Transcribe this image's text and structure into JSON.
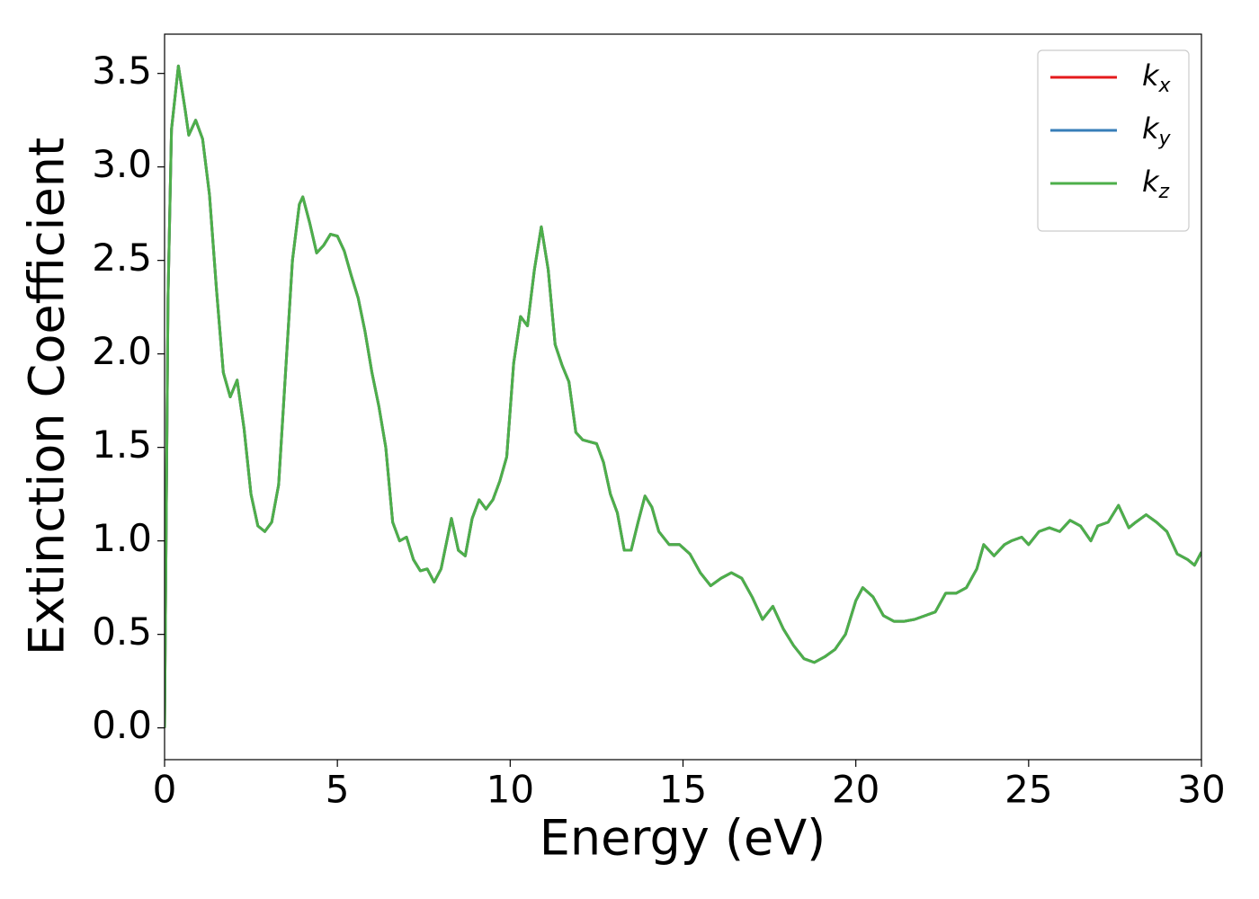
{
  "chart_data": {
    "type": "line",
    "xlabel": "Energy (eV)",
    "ylabel": "Extinction Coefficient",
    "x": [
      0,
      0.1,
      0.2,
      0.4,
      0.6,
      0.7,
      0.9,
      1.1,
      1.3,
      1.5,
      1.7,
      1.9,
      2.1,
      2.3,
      2.5,
      2.7,
      2.9,
      3.1,
      3.3,
      3.5,
      3.7,
      3.9,
      4.0,
      4.2,
      4.4,
      4.6,
      4.8,
      5.0,
      5.2,
      5.4,
      5.6,
      5.8,
      6.0,
      6.2,
      6.4,
      6.6,
      6.8,
      7.0,
      7.2,
      7.4,
      7.6,
      7.8,
      8.0,
      8.3,
      8.5,
      8.7,
      8.9,
      9.1,
      9.3,
      9.5,
      9.7,
      9.9,
      10.1,
      10.3,
      10.5,
      10.7,
      10.9,
      11.1,
      11.3,
      11.5,
      11.7,
      11.9,
      12.1,
      12.3,
      12.5,
      12.7,
      12.9,
      13.1,
      13.3,
      13.5,
      13.7,
      13.9,
      14.1,
      14.3,
      14.6,
      14.9,
      15.2,
      15.5,
      15.8,
      16.1,
      16.4,
      16.7,
      17.0,
      17.3,
      17.6,
      17.9,
      18.2,
      18.5,
      18.8,
      19.1,
      19.4,
      19.7,
      20.0,
      20.2,
      20.5,
      20.8,
      21.1,
      21.4,
      21.7,
      22.0,
      22.3,
      22.6,
      22.9,
      23.2,
      23.5,
      23.7,
      24.0,
      24.3,
      24.5,
      24.8,
      25.0,
      25.3,
      25.6,
      25.9,
      26.2,
      26.5,
      26.8,
      27.0,
      27.3,
      27.6,
      27.9,
      28.1,
      28.4,
      28.7,
      29.0,
      29.3,
      29.6,
      29.8,
      30.0
    ],
    "series": [
      {
        "name": "kx",
        "color": "#e41a1c",
        "values": [
          0.0,
          2.3,
          3.2,
          3.54,
          3.3,
          3.17,
          3.25,
          3.15,
          2.85,
          2.35,
          1.9,
          1.77,
          1.86,
          1.6,
          1.25,
          1.08,
          1.05,
          1.1,
          1.3,
          1.9,
          2.5,
          2.8,
          2.84,
          2.7,
          2.54,
          2.58,
          2.64,
          2.63,
          2.55,
          2.42,
          2.3,
          2.12,
          1.9,
          1.72,
          1.5,
          1.1,
          1.0,
          1.02,
          0.9,
          0.84,
          0.85,
          0.78,
          0.85,
          1.12,
          0.95,
          0.92,
          1.12,
          1.22,
          1.17,
          1.22,
          1.32,
          1.45,
          1.95,
          2.2,
          2.15,
          2.45,
          2.68,
          2.45,
          2.05,
          1.94,
          1.85,
          1.58,
          1.54,
          1.53,
          1.52,
          1.42,
          1.25,
          1.15,
          0.95,
          0.95,
          1.1,
          1.24,
          1.18,
          1.05,
          0.98,
          0.98,
          0.93,
          0.83,
          0.76,
          0.8,
          0.83,
          0.8,
          0.7,
          0.58,
          0.65,
          0.53,
          0.44,
          0.37,
          0.35,
          0.38,
          0.42,
          0.5,
          0.68,
          0.75,
          0.7,
          0.6,
          0.57,
          0.57,
          0.58,
          0.6,
          0.62,
          0.72,
          0.72,
          0.75,
          0.85,
          0.98,
          0.92,
          0.98,
          1.0,
          1.02,
          0.98,
          1.05,
          1.07,
          1.05,
          1.11,
          1.08,
          1.0,
          1.08,
          1.1,
          1.19,
          1.07,
          1.1,
          1.14,
          1.1,
          1.05,
          0.93,
          0.9,
          0.87,
          0.94
        ]
      },
      {
        "name": "ky",
        "color": "#377eb8",
        "values": [
          0.0,
          2.3,
          3.2,
          3.54,
          3.3,
          3.17,
          3.25,
          3.15,
          2.85,
          2.35,
          1.9,
          1.77,
          1.86,
          1.6,
          1.25,
          1.08,
          1.05,
          1.1,
          1.3,
          1.9,
          2.5,
          2.8,
          2.84,
          2.7,
          2.54,
          2.58,
          2.64,
          2.63,
          2.55,
          2.42,
          2.3,
          2.12,
          1.9,
          1.72,
          1.5,
          1.1,
          1.0,
          1.02,
          0.9,
          0.84,
          0.85,
          0.78,
          0.85,
          1.12,
          0.95,
          0.92,
          1.12,
          1.22,
          1.17,
          1.22,
          1.32,
          1.45,
          1.95,
          2.2,
          2.15,
          2.45,
          2.68,
          2.45,
          2.05,
          1.94,
          1.85,
          1.58,
          1.54,
          1.53,
          1.52,
          1.42,
          1.25,
          1.15,
          0.95,
          0.95,
          1.1,
          1.24,
          1.18,
          1.05,
          0.98,
          0.98,
          0.93,
          0.83,
          0.76,
          0.8,
          0.83,
          0.8,
          0.7,
          0.58,
          0.65,
          0.53,
          0.44,
          0.37,
          0.35,
          0.38,
          0.42,
          0.5,
          0.68,
          0.75,
          0.7,
          0.6,
          0.57,
          0.57,
          0.58,
          0.6,
          0.62,
          0.72,
          0.72,
          0.75,
          0.85,
          0.98,
          0.92,
          0.98,
          1.0,
          1.02,
          0.98,
          1.05,
          1.07,
          1.05,
          1.11,
          1.08,
          1.0,
          1.08,
          1.1,
          1.19,
          1.07,
          1.1,
          1.14,
          1.1,
          1.05,
          0.93,
          0.9,
          0.87,
          0.94
        ]
      },
      {
        "name": "kz",
        "color": "#4daf4a",
        "values": [
          0.0,
          2.3,
          3.2,
          3.54,
          3.3,
          3.17,
          3.25,
          3.15,
          2.85,
          2.35,
          1.9,
          1.77,
          1.86,
          1.6,
          1.25,
          1.08,
          1.05,
          1.1,
          1.3,
          1.9,
          2.5,
          2.8,
          2.84,
          2.7,
          2.54,
          2.58,
          2.64,
          2.63,
          2.55,
          2.42,
          2.3,
          2.12,
          1.9,
          1.72,
          1.5,
          1.1,
          1.0,
          1.02,
          0.9,
          0.84,
          0.85,
          0.78,
          0.85,
          1.12,
          0.95,
          0.92,
          1.12,
          1.22,
          1.17,
          1.22,
          1.32,
          1.45,
          1.95,
          2.2,
          2.15,
          2.45,
          2.68,
          2.45,
          2.05,
          1.94,
          1.85,
          1.58,
          1.54,
          1.53,
          1.52,
          1.42,
          1.25,
          1.15,
          0.95,
          0.95,
          1.1,
          1.24,
          1.18,
          1.05,
          0.98,
          0.98,
          0.93,
          0.83,
          0.76,
          0.8,
          0.83,
          0.8,
          0.7,
          0.58,
          0.65,
          0.53,
          0.44,
          0.37,
          0.35,
          0.38,
          0.42,
          0.5,
          0.68,
          0.75,
          0.7,
          0.6,
          0.57,
          0.57,
          0.58,
          0.6,
          0.62,
          0.72,
          0.72,
          0.75,
          0.85,
          0.98,
          0.92,
          0.98,
          1.0,
          1.02,
          0.98,
          1.05,
          1.07,
          1.05,
          1.11,
          1.08,
          1.0,
          1.08,
          1.1,
          1.19,
          1.07,
          1.1,
          1.14,
          1.1,
          1.05,
          0.93,
          0.9,
          0.87,
          0.94
        ]
      }
    ],
    "xlim": [
      0,
      30
    ],
    "xticks": [
      0,
      5,
      10,
      15,
      20,
      25,
      30
    ],
    "ylim": [
      -0.17,
      3.71
    ],
    "yticks": [
      {
        "value": 0,
        "label": "0.0"
      },
      0.5,
      {
        "value": 1,
        "label": "1.0"
      },
      1.5,
      {
        "value": 2,
        "label": "2.0"
      },
      2.5,
      {
        "value": 3,
        "label": "3.0"
      },
      3.5
    ],
    "grid": false,
    "legend": "upper right"
  }
}
